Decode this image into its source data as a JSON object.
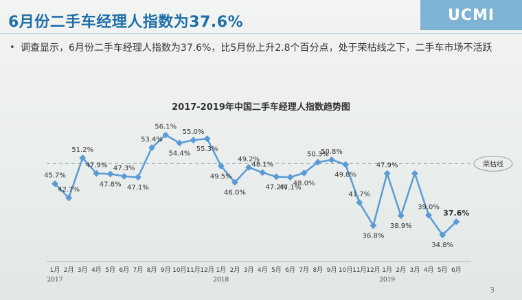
{
  "slide": {
    "title": "6月份二手车经理人指数为37.6%",
    "brand": "UCMI",
    "bullet": "调查显示，6月份二手车经理人指数为37.6%，比5月份上升2.8个百分点，处于荣枯线之下，二手车市场不活跃",
    "page_number": "3"
  },
  "chart_data": {
    "type": "line",
    "title": "2017-2019年中国二手车经理人指数趋势图",
    "categories": [
      "1月",
      "2月",
      "3月",
      "4月",
      "5月",
      "6月",
      "7月",
      "8月",
      "9月",
      "10月",
      "11月",
      "12月",
      "1月",
      "2月",
      "3月",
      "4月",
      "5月",
      "6月",
      "7月",
      "8月",
      "9月",
      "10月",
      "11月",
      "12月",
      "1月",
      "2月",
      "3月",
      "4月",
      "5月",
      "6月"
    ],
    "year_labels": [
      {
        "index": 0,
        "label": "2017"
      },
      {
        "index": 12,
        "label": "2018"
      },
      {
        "index": 24,
        "label": "2019"
      }
    ],
    "series": [
      {
        "values": [
          45.7,
          42.7,
          51.2,
          47.9,
          47.8,
          47.3,
          47.1,
          53.4,
          56.1,
          54.4,
          55.0,
          55.3,
          49.5,
          46.0,
          49.2,
          48.1,
          47.2,
          47.1,
          48.0,
          50.3,
          50.8,
          49.8,
          41.7,
          36.8,
          47.9,
          38.9,
          47.9,
          39.0,
          34.8,
          37.6
        ],
        "color": "#5b9bd5"
      }
    ],
    "data_labels": [
      "45.7%",
      "42.7%",
      "51.2%",
      "47.9%",
      "47.8%",
      "47.3%",
      "47.1%",
      "53.4%",
      "56.1%",
      "54.4%",
      "55.0%",
      "55.3%",
      "49.5%",
      "46.0%",
      "49.2%",
      "48.1%",
      "47.2%",
      "47.1%",
      "48.0%",
      "50.3%",
      "50.8%",
      "49.8%",
      "41.7%",
      "36.8%",
      "47.9%",
      "38.9%",
      "",
      "39.0%",
      "34.8%",
      "37.6%"
    ],
    "label_placement": [
      "above",
      "above",
      "above",
      "above",
      "below",
      "above",
      "below",
      "above",
      "above",
      "below",
      "above",
      "below",
      "below",
      "below",
      "above",
      "above",
      "below",
      "below",
      "below",
      "above",
      "above",
      "below",
      "above",
      "below",
      "above",
      "below",
      "none",
      "above",
      "below",
      "above"
    ],
    "reference_line": {
      "value": 50,
      "label": "荣枯线",
      "color": "#8aa0a6"
    },
    "ylim": [
      30,
      60
    ],
    "grid": false,
    "highlight_last_label": true
  }
}
